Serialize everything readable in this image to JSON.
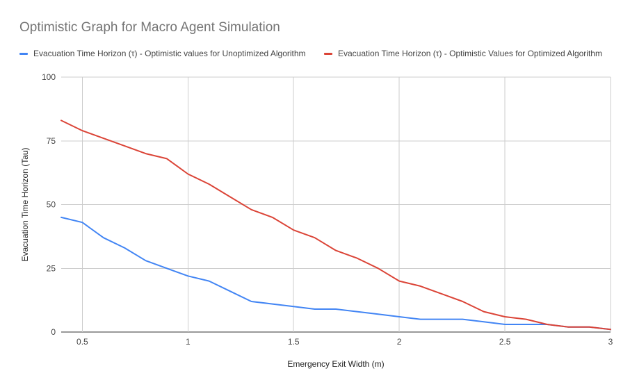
{
  "chart_data": {
    "type": "line",
    "title": "Optimistic Graph for Macro Agent Simulation",
    "xlabel": "Emergency Exit Width (m)",
    "ylabel": "Evacuation Time Horizon (Tau)",
    "xlim": [
      0.4,
      3.0
    ],
    "ylim": [
      0,
      100
    ],
    "x_ticks": [
      0.5,
      1,
      1.5,
      2,
      2.5,
      3
    ],
    "x_tick_labels": [
      "0.5",
      "1",
      "1.5",
      "2",
      "2.5",
      "3"
    ],
    "y_ticks": [
      0,
      25,
      50,
      75,
      100
    ],
    "y_tick_labels": [
      "0",
      "25",
      "50",
      "75",
      "100"
    ],
    "grid": true,
    "legend_position": "top",
    "x": [
      0.4,
      0.5,
      0.6,
      0.7,
      0.8,
      0.9,
      1.0,
      1.1,
      1.2,
      1.3,
      1.4,
      1.5,
      1.6,
      1.7,
      1.8,
      1.9,
      2.0,
      2.1,
      2.2,
      2.3,
      2.4,
      2.5,
      2.6,
      2.7,
      2.8,
      2.9,
      3.0
    ],
    "series": [
      {
        "name": "Evacuation Time Horizon (τ) - Optimistic values for Unoptimized Algorithm",
        "color": "#4285f4",
        "values": [
          45,
          43,
          37,
          33,
          28,
          25,
          22,
          20,
          16,
          12,
          11,
          10,
          9,
          9,
          8,
          7,
          6,
          5,
          5,
          5,
          4,
          3,
          3,
          3,
          2,
          2,
          1
        ]
      },
      {
        "name": "Evacuation Time Horizon (τ) - Optimistic Values for Optimized Algorithm",
        "color": "#db4437",
        "values": [
          83,
          79,
          76,
          73,
          70,
          68,
          62,
          58,
          53,
          48,
          45,
          40,
          37,
          32,
          29,
          25,
          20,
          18,
          15,
          12,
          8,
          6,
          5,
          3,
          2,
          2,
          1
        ]
      }
    ]
  }
}
